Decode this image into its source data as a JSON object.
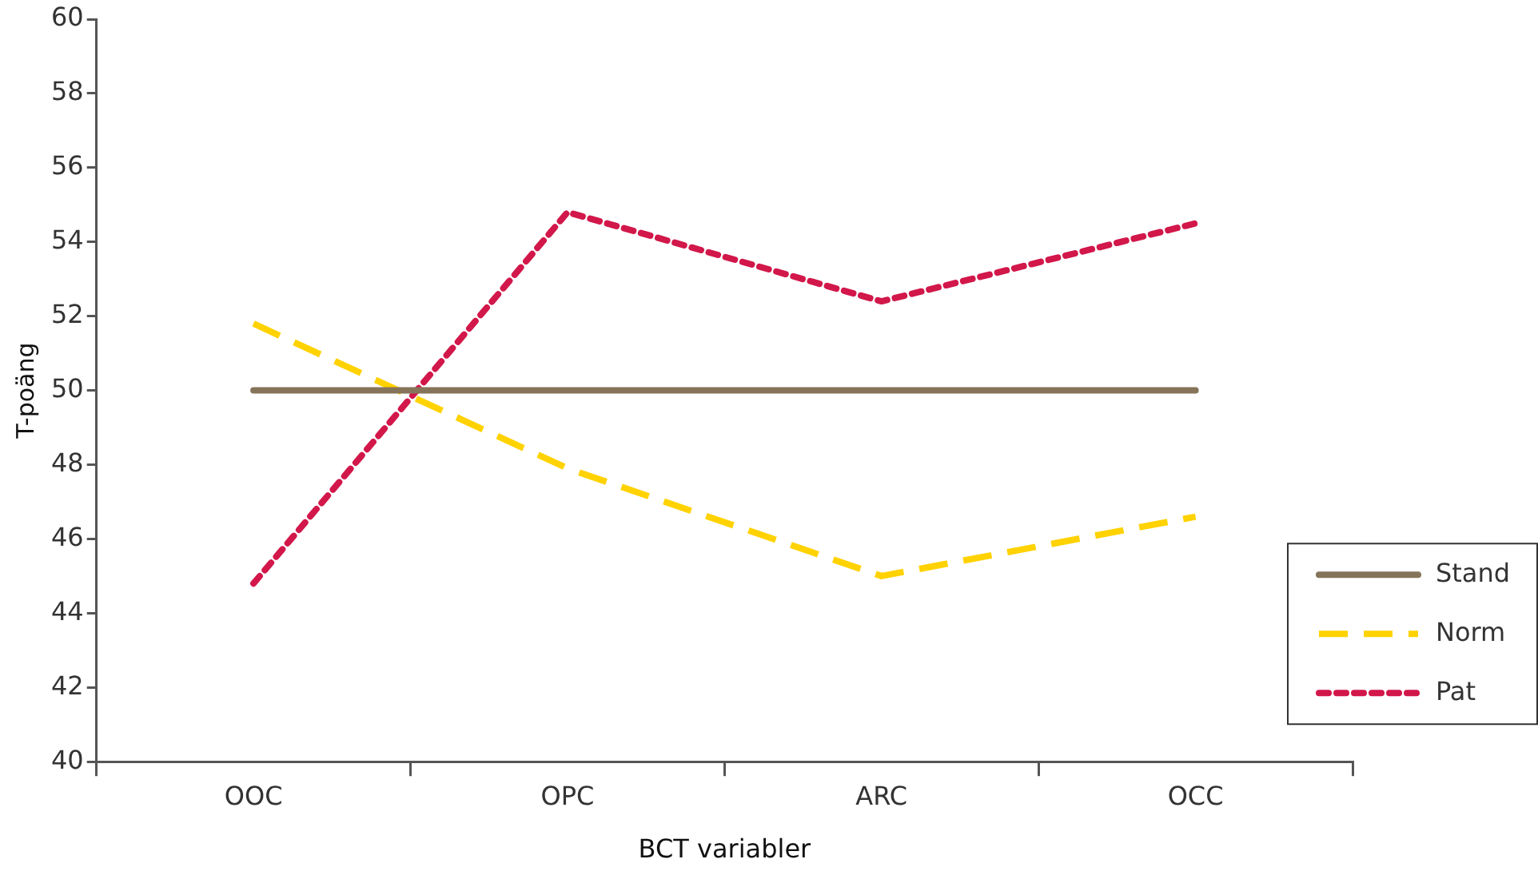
{
  "chart_data": {
    "type": "line",
    "xlabel": "BCT variabler",
    "ylabel": "T-poäng",
    "categories": [
      "OOC",
      "OPC",
      "ARC",
      "OCC"
    ],
    "series": [
      {
        "name": "Stand",
        "color": "#857459",
        "line_style": "solid",
        "values": [
          50,
          50,
          50,
          50
        ]
      },
      {
        "name": "Norm",
        "color": "#ffd200",
        "line_style": "dashed",
        "values": [
          51.8,
          47.9,
          45.0,
          46.6
        ]
      },
      {
        "name": "Pat",
        "color": "#d2174a",
        "line_style": "dotted",
        "values": [
          44.8,
          54.8,
          52.4,
          54.5
        ]
      }
    ],
    "ylim": [
      40,
      60
    ],
    "yticks": [
      40,
      42,
      44,
      46,
      48,
      50,
      52,
      54,
      56,
      58,
      60
    ],
    "grid": false,
    "legend": "bottom right",
    "marker": "none"
  }
}
